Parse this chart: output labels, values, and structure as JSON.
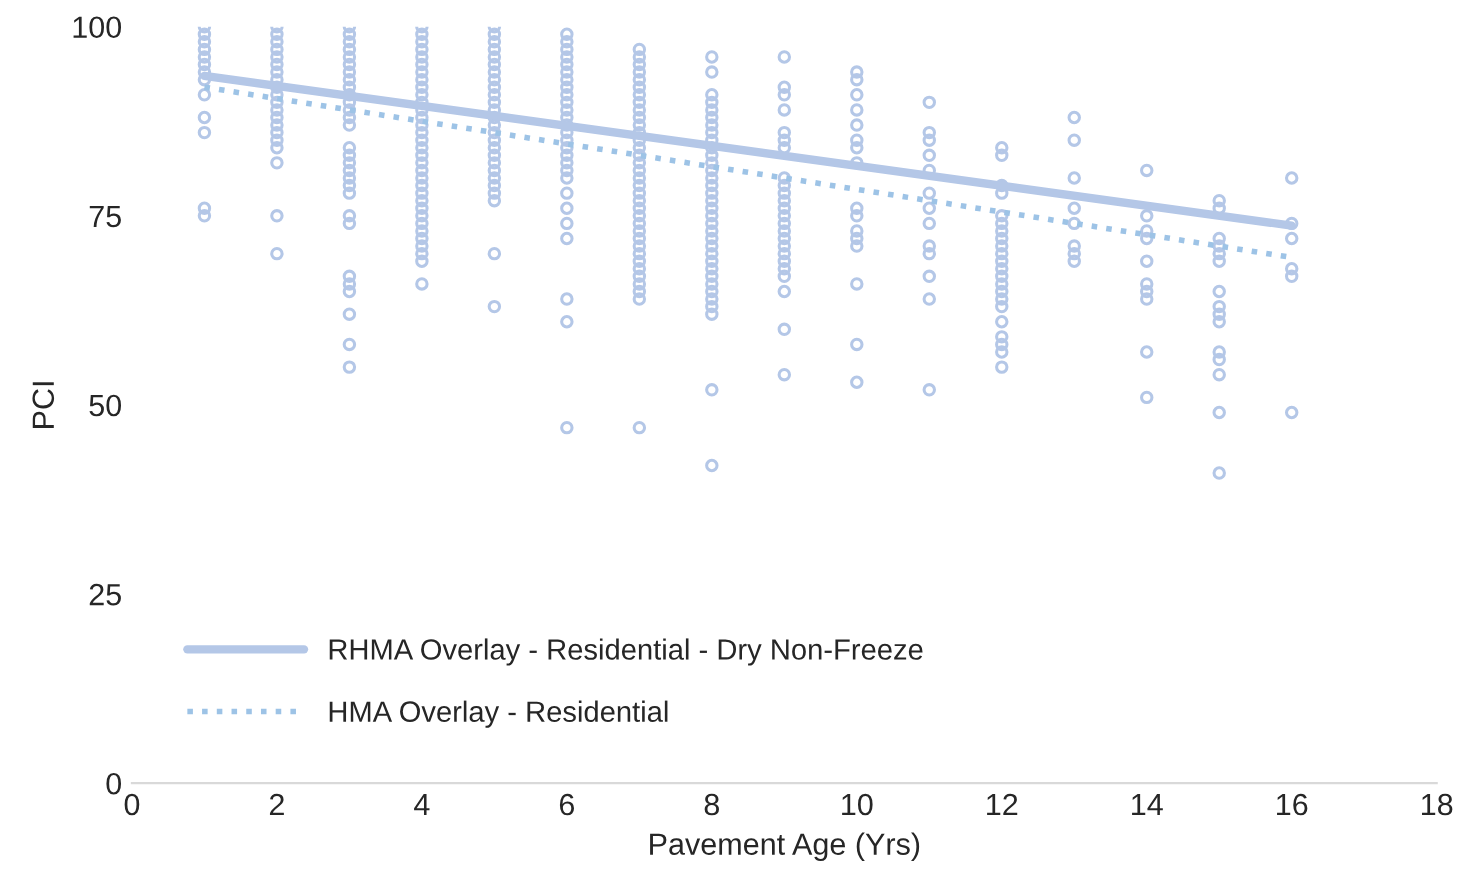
{
  "chart_data": {
    "type": "scatter",
    "xlabel": "Pavement Age (Yrs)",
    "ylabel": "PCI",
    "xlim": [
      0,
      18
    ],
    "xticks": [
      0,
      2,
      4,
      6,
      8,
      10,
      12,
      14,
      16,
      18
    ],
    "ylim": [
      0,
      100
    ],
    "yticks": [
      0,
      25,
      50,
      75,
      100
    ],
    "grid": false,
    "legend": "bottom left",
    "series": [
      {
        "color": "#b4c7e7",
        "marker": "circle",
        "x": [
          1,
          1,
          1,
          1,
          1,
          1,
          1,
          1,
          1,
          1,
          1,
          1,
          1,
          2,
          2,
          2,
          2,
          2,
          2,
          2,
          2,
          2,
          2,
          2,
          2,
          2,
          2,
          2,
          2,
          2,
          2,
          2,
          2,
          3,
          3,
          3,
          3,
          3,
          3,
          3,
          3,
          3,
          3,
          3,
          3,
          3,
          3,
          3,
          3,
          3,
          3,
          3,
          3,
          3,
          3,
          3,
          3,
          3,
          3,
          3,
          3,
          3,
          4,
          4,
          4,
          4,
          4,
          4,
          4,
          4,
          4,
          4,
          4,
          4,
          4,
          4,
          4,
          4,
          4,
          4,
          4,
          4,
          4,
          4,
          4,
          4,
          4,
          4,
          4,
          4,
          4,
          4,
          4,
          4,
          4,
          5,
          5,
          5,
          5,
          5,
          5,
          5,
          5,
          5,
          5,
          5,
          5,
          5,
          5,
          5,
          5,
          5,
          5,
          5,
          5,
          5,
          5,
          5,
          5,
          5,
          5,
          6,
          6,
          6,
          6,
          6,
          6,
          6,
          6,
          6,
          6,
          6,
          6,
          6,
          6,
          6,
          6,
          6,
          6,
          6,
          6,
          6,
          6,
          6,
          6,
          6,
          6,
          6,
          7,
          7,
          7,
          7,
          7,
          7,
          7,
          7,
          7,
          7,
          7,
          7,
          7,
          7,
          7,
          7,
          7,
          7,
          7,
          7,
          7,
          7,
          7,
          7,
          7,
          7,
          7,
          7,
          7,
          7,
          7,
          7,
          7,
          7,
          7,
          8,
          8,
          8,
          8,
          8,
          8,
          8,
          8,
          8,
          8,
          8,
          8,
          8,
          8,
          8,
          8,
          8,
          8,
          8,
          8,
          8,
          8,
          8,
          8,
          8,
          8,
          8,
          8,
          8,
          8,
          8,
          8,
          8,
          8,
          9,
          9,
          9,
          9,
          9,
          9,
          9,
          9,
          9,
          9,
          9,
          9,
          9,
          9,
          9,
          9,
          9,
          9,
          9,
          9,
          9,
          9,
          9,
          9,
          10,
          10,
          10,
          10,
          10,
          10,
          10,
          10,
          10,
          10,
          10,
          10,
          10,
          10,
          10,
          10,
          11,
          11,
          11,
          11,
          11,
          11,
          11,
          11,
          11,
          11,
          11,
          11,
          11,
          12,
          12,
          12,
          12,
          12,
          12,
          12,
          12,
          12,
          12,
          12,
          12,
          12,
          12,
          12,
          12,
          12,
          12,
          12,
          12,
          12,
          12,
          13,
          13,
          13,
          13,
          13,
          13,
          13,
          13,
          14,
          14,
          14,
          14,
          14,
          14,
          14,
          14,
          14,
          14,
          15,
          15,
          15,
          15,
          15,
          15,
          15,
          15,
          15,
          15,
          15,
          15,
          15,
          15,
          15,
          16,
          16,
          16,
          16,
          16,
          16
        ],
        "values": [
          100,
          99,
          98,
          97,
          96,
          95,
          94,
          93,
          91,
          88,
          86,
          76,
          75,
          100,
          99,
          98,
          97,
          96,
          95,
          94,
          93,
          92,
          91,
          90,
          89,
          88,
          87,
          86,
          85,
          84,
          82,
          75,
          70,
          100,
          99,
          98,
          97,
          96,
          95,
          94,
          93,
          92,
          91,
          90,
          89,
          88,
          87,
          84,
          83,
          82,
          81,
          80,
          79,
          78,
          75,
          74,
          67,
          66,
          65,
          62,
          58,
          55,
          100,
          99,
          98,
          97,
          96,
          95,
          94,
          93,
          92,
          91,
          90,
          89,
          88,
          87,
          86,
          85,
          84,
          83,
          82,
          81,
          80,
          79,
          78,
          77,
          76,
          75,
          74,
          73,
          72,
          71,
          70,
          69,
          66,
          100,
          99,
          98,
          97,
          96,
          95,
          94,
          93,
          92,
          91,
          90,
          89,
          88,
          87,
          86,
          85,
          84,
          83,
          82,
          81,
          80,
          79,
          78,
          77,
          70,
          63,
          99,
          98,
          97,
          96,
          95,
          94,
          93,
          92,
          91,
          90,
          89,
          88,
          87,
          86,
          85,
          84,
          83,
          82,
          81,
          80,
          78,
          76,
          74,
          72,
          64,
          61,
          47,
          97,
          96,
          95,
          94,
          93,
          92,
          91,
          90,
          89,
          88,
          87,
          86,
          85,
          84,
          83,
          82,
          81,
          80,
          79,
          78,
          77,
          76,
          75,
          74,
          73,
          72,
          71,
          70,
          69,
          68,
          67,
          66,
          65,
          64,
          47,
          96,
          94,
          91,
          90,
          89,
          88,
          87,
          86,
          85,
          84,
          83,
          82,
          81,
          80,
          79,
          78,
          77,
          76,
          75,
          74,
          73,
          72,
          71,
          70,
          69,
          68,
          67,
          66,
          65,
          64,
          63,
          62,
          52,
          42,
          96,
          92,
          91,
          89,
          86,
          85,
          84,
          80,
          79,
          78,
          77,
          76,
          75,
          74,
          73,
          72,
          71,
          70,
          69,
          68,
          67,
          65,
          60,
          54,
          94,
          93,
          91,
          89,
          87,
          85,
          84,
          82,
          76,
          75,
          73,
          72,
          71,
          66,
          58,
          53,
          90,
          86,
          85,
          83,
          81,
          78,
          76,
          74,
          71,
          70,
          67,
          64,
          52,
          84,
          83,
          79,
          78,
          75,
          74,
          73,
          72,
          71,
          70,
          69,
          68,
          67,
          66,
          65,
          64,
          63,
          61,
          59,
          58,
          57,
          55,
          88,
          85,
          80,
          76,
          74,
          71,
          70,
          69,
          81,
          75,
          73,
          72,
          69,
          66,
          65,
          64,
          57,
          51,
          77,
          76,
          72,
          71,
          70,
          69,
          65,
          63,
          62,
          61,
          57,
          56,
          54,
          49,
          41,
          80,
          74,
          72,
          68,
          67,
          49
        ]
      },
      {
        "type": "line",
        "name": "RHMA Overlay - Residential - Dry Non-Freeze",
        "color": "#b4c7e7",
        "line_style": "solid",
        "x": [
          1,
          16
        ],
        "values": [
          93.5,
          73.7
        ]
      },
      {
        "type": "line",
        "name": "HMA Overlay - Residential",
        "color": "#9dc3e6",
        "line_style": "dotted",
        "x": [
          1,
          16
        ],
        "values": [
          92,
          69.5
        ]
      }
    ]
  }
}
